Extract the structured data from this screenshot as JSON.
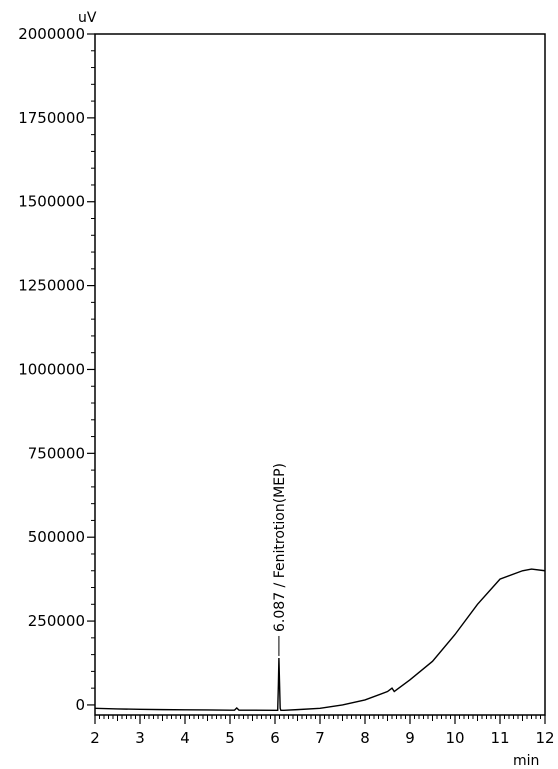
{
  "chart_data": {
    "type": "line",
    "title": "",
    "xlabel": "",
    "ylabel": "",
    "x_unit": "min",
    "y_unit": "uV",
    "xlim": [
      2,
      12
    ],
    "ylim": [
      -30000,
      2000000
    ],
    "grid": false,
    "x_ticks": [
      2,
      3,
      4,
      5,
      6,
      7,
      8,
      9,
      10,
      11,
      12
    ],
    "x_tick_labels": [
      "2",
      "3",
      "4",
      "5",
      "6",
      "7",
      "8",
      "9",
      "10",
      "11",
      "12"
    ],
    "y_ticks": [
      0,
      250000,
      500000,
      750000,
      1000000,
      1250000,
      1500000,
      1750000,
      2000000
    ],
    "y_tick_labels": [
      "0",
      "250000",
      "500000",
      "750000",
      "1000000",
      "1250000",
      "1500000",
      "1750000",
      "2000000"
    ],
    "series": [
      {
        "x": [
          2.0,
          2.5,
          3.0,
          3.5,
          4.0,
          4.5,
          5.0,
          5.1,
          5.15,
          5.2,
          5.5,
          6.0,
          6.06,
          6.075,
          6.087,
          6.1,
          6.115,
          6.13,
          6.2,
          6.5,
          7.0,
          7.5,
          8.0,
          8.5,
          8.6,
          8.65,
          8.7,
          9.0,
          9.5,
          10.0,
          10.5,
          11.0,
          11.5,
          11.7,
          12.0
        ],
        "y": [
          -10000,
          -12000,
          -13000,
          -14000,
          -14500,
          -15000,
          -15500,
          -15500,
          -9000,
          -15500,
          -15500,
          -16000,
          -16000,
          60000,
          140000,
          70000,
          -10000,
          -16000,
          -16000,
          -14000,
          -10000,
          0,
          15000,
          40000,
          50000,
          40000,
          45000,
          75000,
          130000,
          210000,
          300000,
          375000,
          400000,
          405000,
          400000
        ]
      }
    ],
    "annotations": [
      {
        "x": 6.087,
        "text": "6.087 / Fenitrotion(MEP)"
      }
    ]
  }
}
